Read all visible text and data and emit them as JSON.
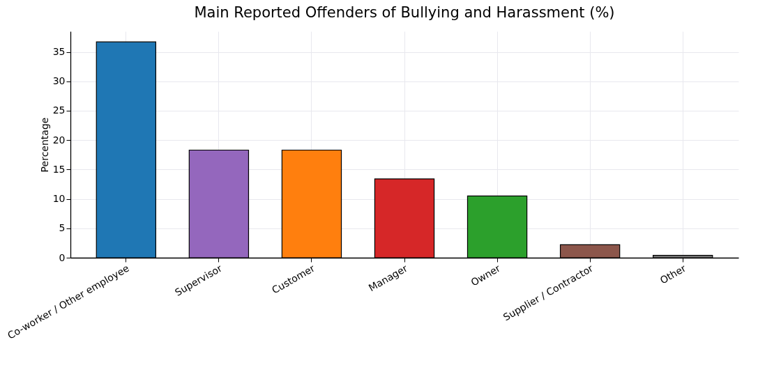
{
  "chart_data": {
    "type": "bar",
    "title": "Main Reported Offenders of Bullying and Harassment (%)",
    "ylabel": "Percentage",
    "categories": [
      "Co-worker / Other employee",
      "Supervisor",
      "Customer",
      "Manager",
      "Owner",
      "Supplier / Contractor",
      "Other"
    ],
    "values": [
      36.7,
      18.3,
      18.3,
      13.4,
      10.5,
      2.2,
      0.4
    ],
    "colors": [
      "#1f77b4",
      "#9467bd",
      "#ff7f0e",
      "#d62728",
      "#2ca02c",
      "#8c564b",
      "#7f7f7f"
    ],
    "ylim": [
      0,
      38.5
    ],
    "yticks": [
      0,
      5,
      10,
      15,
      20,
      25,
      30,
      35
    ],
    "grid": true
  }
}
